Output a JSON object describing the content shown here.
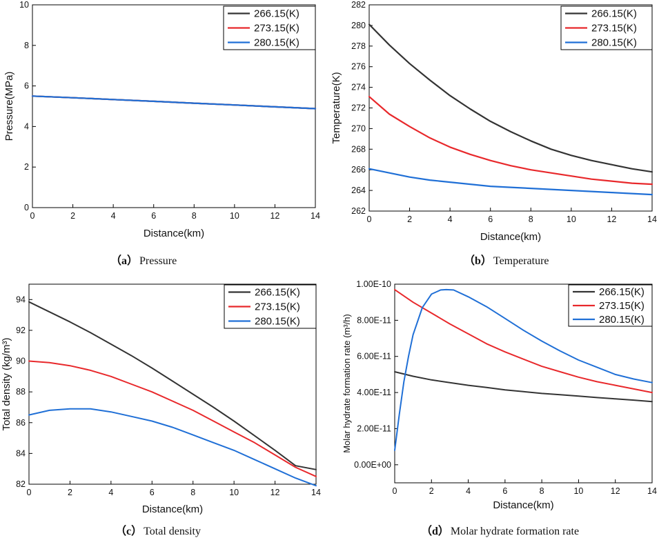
{
  "chart_data": [
    {
      "id": "a",
      "type": "line",
      "caption_label": "（a）",
      "caption_text": "Pressure",
      "xlabel": "Distance(km)",
      "ylabel": "Pressure(MPa)",
      "xlim": [
        0,
        14
      ],
      "ylim": [
        0,
        10
      ],
      "xticks": [
        "0",
        "2",
        "4",
        "6",
        "8",
        "10",
        "12",
        "14"
      ],
      "yticks": [
        "0",
        "2",
        "4",
        "6",
        "8",
        "10"
      ],
      "legend_position": "top-right",
      "series": [
        {
          "name": "266.15(K)",
          "color": "#333333",
          "x": [
            0,
            2,
            4,
            6,
            8,
            10,
            12,
            14
          ],
          "y": [
            5.5,
            5.42,
            5.33,
            5.24,
            5.15,
            5.06,
            4.97,
            4.88
          ]
        },
        {
          "name": "273.15(K)",
          "color": "#e8282b",
          "x": [
            0,
            2,
            4,
            6,
            8,
            10,
            12,
            14
          ],
          "y": [
            5.5,
            5.42,
            5.33,
            5.24,
            5.15,
            5.06,
            4.97,
            4.88
          ]
        },
        {
          "name": "280.15(K)",
          "color": "#1f6fd6",
          "x": [
            0,
            2,
            4,
            6,
            8,
            10,
            12,
            14
          ],
          "y": [
            5.5,
            5.42,
            5.33,
            5.24,
            5.15,
            5.06,
            4.97,
            4.88
          ]
        }
      ]
    },
    {
      "id": "b",
      "type": "line",
      "caption_label": "（b）",
      "caption_text": "Temperature",
      "xlabel": "Distance(km)",
      "ylabel": "Temperature(K)",
      "xlim": [
        0,
        14
      ],
      "ylim": [
        262,
        282
      ],
      "xticks": [
        "0",
        "2",
        "4",
        "6",
        "8",
        "10",
        "12",
        "14"
      ],
      "yticks": [
        "262",
        "264",
        "266",
        "268",
        "270",
        "272",
        "274",
        "276",
        "278",
        "280",
        "282"
      ],
      "legend_position": "top-right",
      "series": [
        {
          "name": "266.15(K)",
          "color": "#333333",
          "x": [
            0,
            1,
            2,
            3,
            4,
            5,
            6,
            7,
            8,
            9,
            10,
            11,
            12,
            13,
            14
          ],
          "y": [
            280.1,
            278.1,
            276.3,
            274.7,
            273.2,
            271.9,
            270.7,
            269.7,
            268.8,
            268.0,
            267.4,
            266.9,
            266.5,
            266.1,
            265.8
          ]
        },
        {
          "name": "273.15(K)",
          "color": "#e8282b",
          "x": [
            0,
            1,
            2,
            3,
            4,
            5,
            6,
            7,
            8,
            9,
            10,
            11,
            12,
            13,
            14
          ],
          "y": [
            273.1,
            271.4,
            270.2,
            269.1,
            268.2,
            267.5,
            266.9,
            266.4,
            266.0,
            265.7,
            265.4,
            265.1,
            264.9,
            264.7,
            264.6
          ]
        },
        {
          "name": "280.15(K)",
          "color": "#1f6fd6",
          "x": [
            0,
            1,
            2,
            3,
            4,
            5,
            6,
            7,
            8,
            9,
            10,
            11,
            12,
            13,
            14
          ],
          "y": [
            266.1,
            265.7,
            265.3,
            265.0,
            264.8,
            264.6,
            264.4,
            264.3,
            264.2,
            264.1,
            264.0,
            263.9,
            263.8,
            263.7,
            263.6
          ]
        }
      ]
    },
    {
      "id": "c",
      "type": "line",
      "caption_label": "（c）",
      "caption_text": "Total density",
      "xlabel": "Distance(km)",
      "ylabel": "Total density (kg/m³)",
      "xlim": [
        0,
        14
      ],
      "ylim": [
        82,
        95
      ],
      "xticks": [
        "0",
        "2",
        "4",
        "6",
        "8",
        "10",
        "12",
        "14"
      ],
      "yticks": [
        "82",
        "84",
        "86",
        "88",
        "90",
        "92",
        "94"
      ],
      "legend_position": "top-right",
      "series": [
        {
          "name": "266.15(K)",
          "color": "#333333",
          "x": [
            0,
            1,
            2,
            3,
            4,
            5,
            6,
            7,
            8,
            9,
            10,
            11,
            12,
            13,
            14
          ],
          "y": [
            93.85,
            93.2,
            92.55,
            91.85,
            91.1,
            90.35,
            89.55,
            88.7,
            87.85,
            87.0,
            86.1,
            85.15,
            84.2,
            83.2,
            82.95
          ]
        },
        {
          "name": "273.15(K)",
          "color": "#e8282b",
          "x": [
            0,
            1,
            2,
            3,
            4,
            5,
            6,
            7,
            8,
            9,
            10,
            11,
            12,
            13,
            14
          ],
          "y": [
            90.0,
            89.9,
            89.7,
            89.4,
            89.0,
            88.5,
            88.0,
            87.4,
            86.8,
            86.1,
            85.4,
            84.7,
            83.9,
            83.1,
            82.5
          ]
        },
        {
          "name": "280.15(K)",
          "color": "#1f6fd6",
          "x": [
            0,
            1,
            2,
            3,
            4,
            5,
            6,
            7,
            8,
            9,
            10,
            11,
            12,
            13,
            14
          ],
          "y": [
            86.5,
            86.8,
            86.9,
            86.9,
            86.7,
            86.4,
            86.1,
            85.7,
            85.2,
            84.7,
            84.2,
            83.6,
            83.0,
            82.4,
            81.9
          ]
        }
      ]
    },
    {
      "id": "d",
      "type": "line",
      "caption_label": "（d）",
      "caption_text": "Molar hydrate formation rate",
      "xlabel": "Distance(km)",
      "ylabel": "Molar hydrate formation rate (m³/h)",
      "xlim": [
        0,
        14
      ],
      "ylim": [
        -1e-11,
        1e-10
      ],
      "xticks": [
        "0",
        "2",
        "4",
        "6",
        "8",
        "10",
        "12",
        "14"
      ],
      "yticks": [
        "0.00E+00",
        "2.00E-11",
        "4.00E-11",
        "6.00E-11",
        "8.00E-11",
        "1.00E-10"
      ],
      "ytick_values": [
        0,
        2e-11,
        4e-11,
        6e-11,
        8e-11,
        1e-10
      ],
      "legend_position": "top-right",
      "series": [
        {
          "name": "266.15(K)",
          "color": "#333333",
          "x": [
            0,
            1,
            2,
            3,
            4,
            5,
            6,
            7,
            8,
            9,
            10,
            11,
            12,
            13,
            14
          ],
          "y": [
            5.15e-11,
            4.9e-11,
            4.7e-11,
            4.55e-11,
            4.4e-11,
            4.28e-11,
            4.15e-11,
            4.05e-11,
            3.95e-11,
            3.88e-11,
            3.8e-11,
            3.72e-11,
            3.65e-11,
            3.58e-11,
            3.5e-11
          ]
        },
        {
          "name": "273.15(K)",
          "color": "#e8282b",
          "x": [
            0,
            1,
            2,
            3,
            4,
            5,
            6,
            7,
            8,
            9,
            10,
            11,
            12,
            13,
            14
          ],
          "y": [
            9.7e-11,
            9e-11,
            8.4e-11,
            7.8e-11,
            7.25e-11,
            6.7e-11,
            6.25e-11,
            5.85e-11,
            5.45e-11,
            5.15e-11,
            4.85e-11,
            4.6e-11,
            4.4e-11,
            4.2e-11,
            4e-11
          ]
        },
        {
          "name": "280.15(K)",
          "color": "#1f6fd6",
          "x": [
            0,
            0.25,
            0.5,
            0.75,
            1,
            1.5,
            2,
            2.5,
            2.8,
            3.2,
            4,
            5,
            6,
            7,
            8,
            9,
            10,
            11,
            12,
            13,
            14
          ],
          "y": [
            8e-12,
            2.8e-11,
            4.6e-11,
            6e-11,
            7.2e-11,
            8.7e-11,
            9.45e-11,
            9.68e-11,
            9.7e-11,
            9.68e-11,
            9.3e-11,
            8.75e-11,
            8.1e-11,
            7.45e-11,
            6.85e-11,
            6.3e-11,
            5.8e-11,
            5.4e-11,
            5e-11,
            4.75e-11,
            4.55e-11
          ]
        }
      ]
    }
  ]
}
